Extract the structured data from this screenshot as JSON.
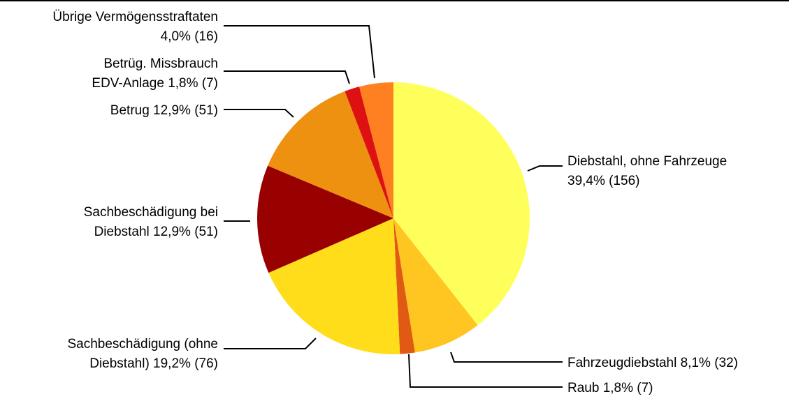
{
  "chart_data": {
    "type": "pie",
    "labels": [
      [
        "Diebstahl, ohne Fahrzeuge",
        "39,4% (156)"
      ],
      [
        "Fahrzeugdiebstahl 8,1% (32)"
      ],
      [
        "Raub 1,8% (7)"
      ],
      [
        "Sachbeschädigung (ohne",
        "Diebstahl) 19,2% (76)"
      ],
      [
        "Sachbeschädigung bei",
        "Diebstahl 12,9% (51)"
      ],
      [
        "Betrug 12,9% (51)"
      ],
      [
        "Betrüg. Missbrauch",
        "EDV-Anlage 1,8% (7)"
      ],
      [
        "Übrige Vermögensstraftaten",
        "4,0% (16)"
      ]
    ],
    "values": [
      156,
      32,
      7,
      76,
      51,
      51,
      7,
      16
    ],
    "colors": [
      "#ffff5c",
      "#ffc520",
      "#e05a14",
      "#ffdd1a",
      "#990000",
      "#ee9010",
      "#dd1111",
      "#ff8020"
    ]
  }
}
